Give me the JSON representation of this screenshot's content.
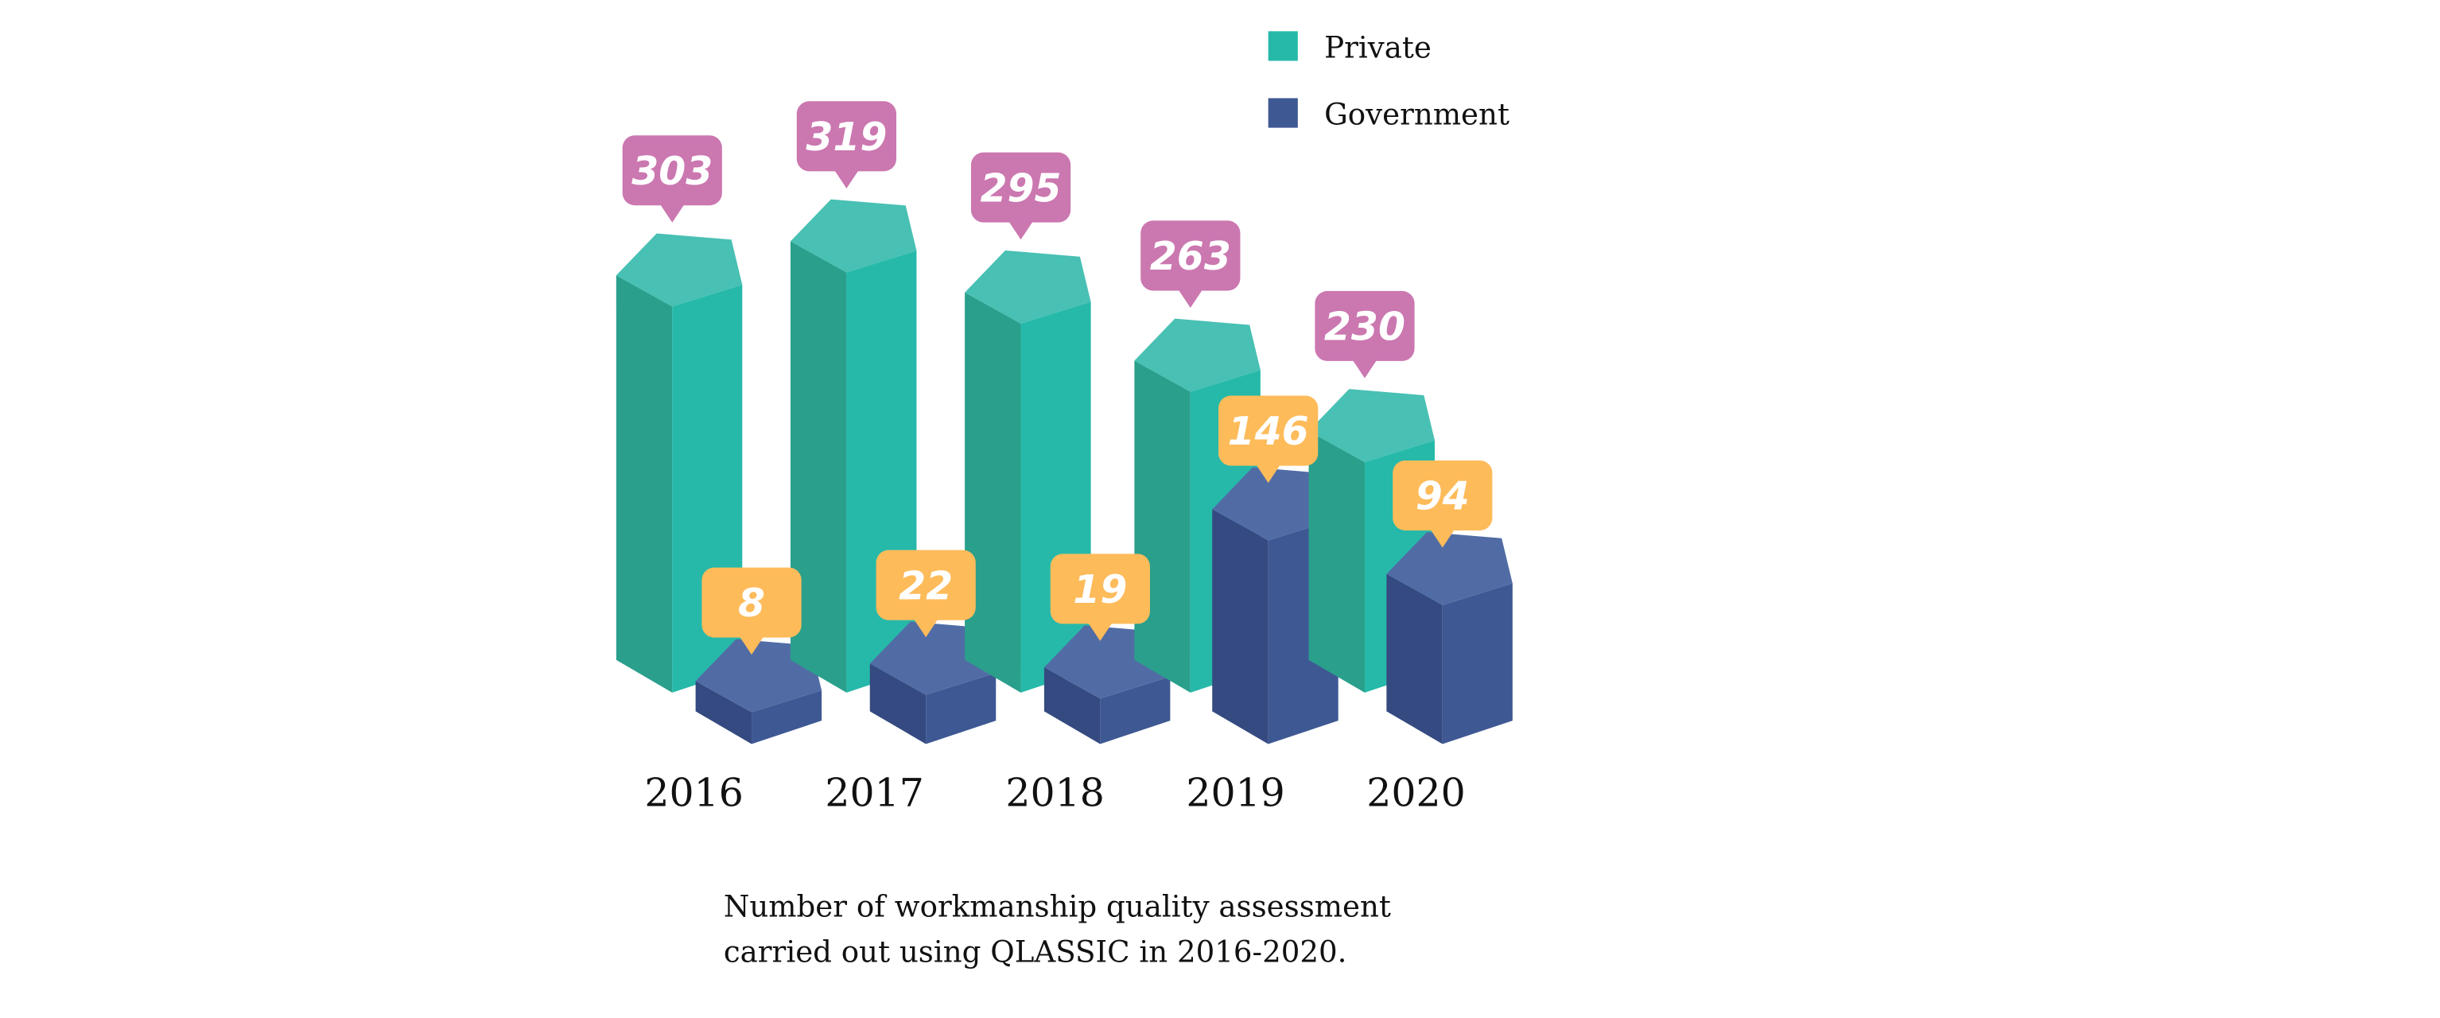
{
  "chart_data": {
    "type": "bar",
    "style": "3d-pentagonal-columns",
    "categories": [
      "2016",
      "2017",
      "2018",
      "2019",
      "2020"
    ],
    "series": [
      {
        "name": "Private",
        "values": [
          303,
          319,
          295,
          263,
          230
        ],
        "color": "#26b9aa",
        "label_color": "#cb77b0"
      },
      {
        "name": "Government",
        "values": [
          8,
          22,
          19,
          146,
          94
        ],
        "color": "#3e5893",
        "label_color": "#fdbb5a"
      }
    ],
    "legend_placement": "top-right",
    "grid": false,
    "data_labels": true
  },
  "caption": {
    "line1": "Number of workmanship quality assessment",
    "line2": "carried out using QLASSIC in 2016-2020."
  },
  "colors": {
    "private_left": "#2a9f8c",
    "private_right": "#26b9aa",
    "private_top": "#48c0b3",
    "gov_left": "#344a80",
    "gov_right": "#3e5893",
    "gov_top": "#516ca5"
  }
}
